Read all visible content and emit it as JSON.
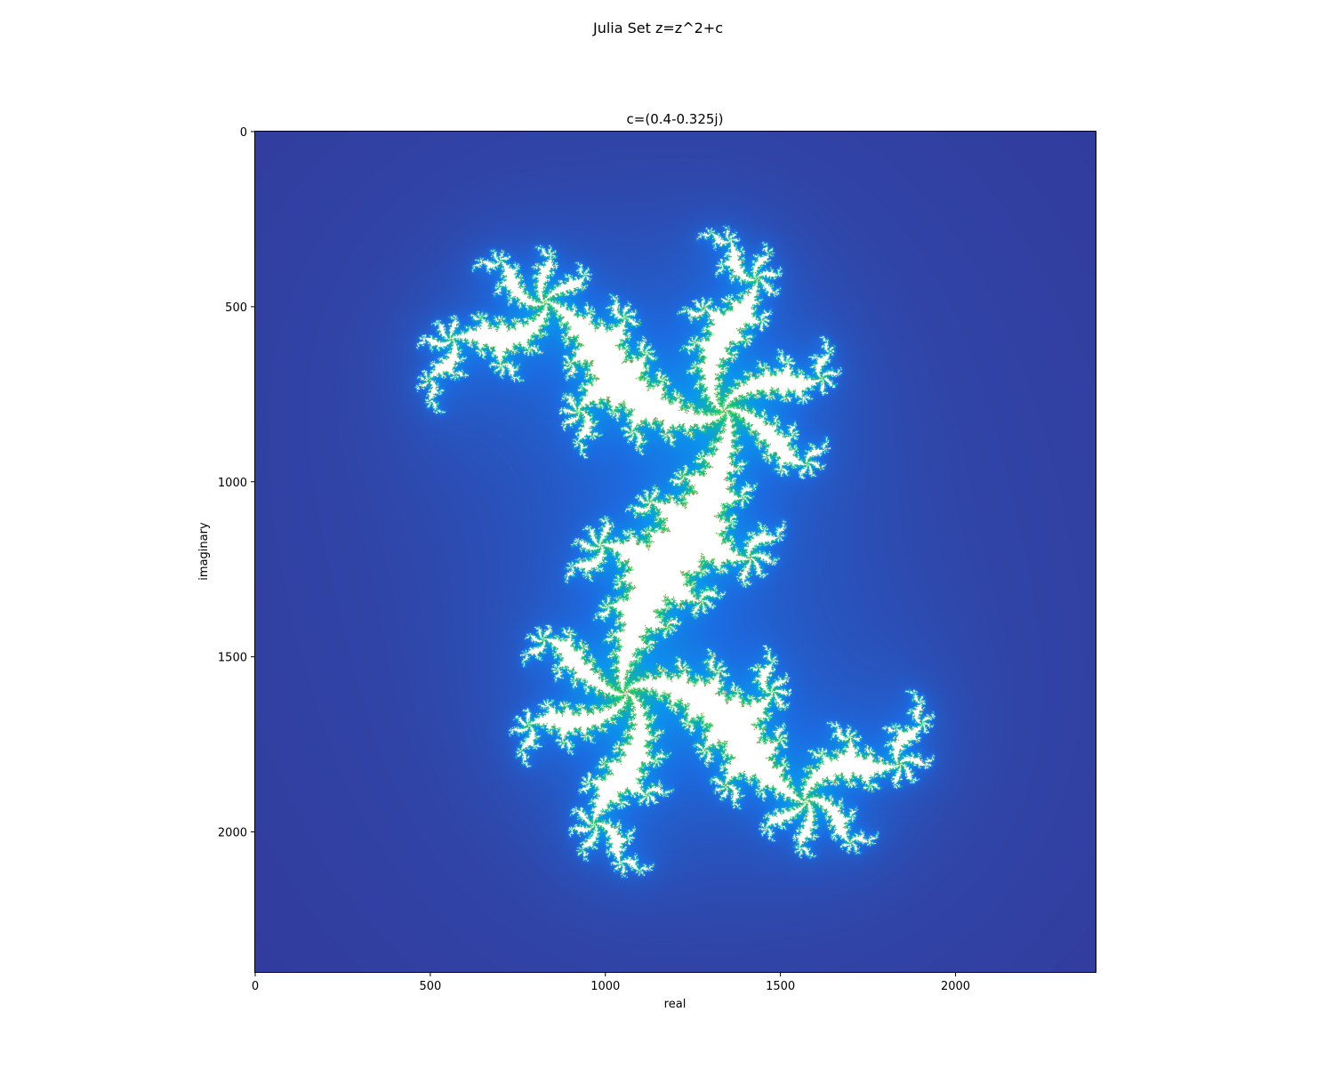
{
  "chart_data": {
    "type": "heatmap",
    "suptitle": "Julia Set z=z^2+c",
    "title": "c=(0.4-0.325j)",
    "xlabel": "real",
    "ylabel": "imaginary",
    "c": {
      "real": 0.4,
      "imag": -0.325
    },
    "pixel_grid": {
      "width": 2400,
      "height": 2400
    },
    "xlim": [
      0,
      2400
    ],
    "ylim": [
      2400,
      0
    ],
    "x_ticks": [
      {
        "value": 0,
        "label": "0"
      },
      {
        "value": 500,
        "label": "500"
      },
      {
        "value": 1000,
        "label": "1000"
      },
      {
        "value": 1500,
        "label": "1500"
      },
      {
        "value": 2000,
        "label": "2000"
      }
    ],
    "y_ticks": [
      {
        "value": 0,
        "label": "0"
      },
      {
        "value": 500,
        "label": "500"
      },
      {
        "value": 1000,
        "label": "1000"
      },
      {
        "value": 1500,
        "label": "1500"
      },
      {
        "value": 2000,
        "label": "2000"
      }
    ],
    "colormap": [
      "#333392",
      "#3045a8",
      "#1c6be0",
      "#0a96ee",
      "#19cc6a",
      "#8fe06a",
      "#ffffff"
    ],
    "edge_color": "#8a4a2e",
    "grid": false
  }
}
